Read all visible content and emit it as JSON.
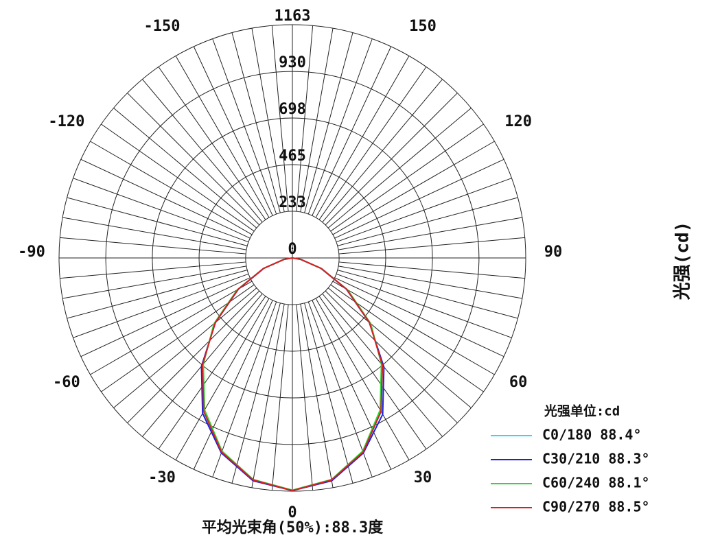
{
  "chart_data": {
    "type": "polar",
    "r_label": "光强(cd)",
    "caption": "平均光束角(50%):88.3度",
    "legend_title": "光强单位:cd",
    "legend": "lower-right",
    "angles": [
      -90,
      -80,
      -70,
      -60,
      -50,
      -40,
      -30,
      -20,
      -10,
      0,
      10,
      20,
      30,
      40,
      50,
      60,
      70,
      80,
      90
    ],
    "rlim": [
      0,
      1163
    ],
    "rticks": [
      0,
      233,
      465,
      698,
      930,
      1163
    ],
    "angle_ticks": [
      -150,
      -120,
      -90,
      -60,
      -30,
      0,
      30,
      60,
      90,
      120,
      150
    ],
    "series": [
      {
        "name": "C0/180 88.4°",
        "color": "#22e0f0",
        "values": [
          0,
          45,
          155,
          315,
          505,
          700,
          885,
          1030,
          1125,
          1160,
          1125,
          1030,
          885,
          700,
          505,
          315,
          155,
          45,
          0
        ]
      },
      {
        "name": "C30/210 88.3°",
        "color": "#2020e0",
        "values": [
          0,
          40,
          150,
          310,
          500,
          705,
          895,
          1035,
          1128,
          1160,
          1128,
          1035,
          900,
          710,
          500,
          310,
          150,
          40,
          0
        ]
      },
      {
        "name": "C60/240 88.1°",
        "color": "#30d830",
        "values": [
          0,
          42,
          152,
          318,
          510,
          690,
          875,
          1025,
          1122,
          1158,
          1122,
          1025,
          875,
          690,
          510,
          318,
          152,
          42,
          0
        ]
      },
      {
        "name": "C90/270 88.5°",
        "color": "#d82020",
        "values": [
          0,
          44,
          154,
          312,
          502,
          698,
          883,
          1030,
          1124,
          1160,
          1124,
          1030,
          883,
          698,
          502,
          312,
          154,
          44,
          0
        ]
      }
    ]
  }
}
